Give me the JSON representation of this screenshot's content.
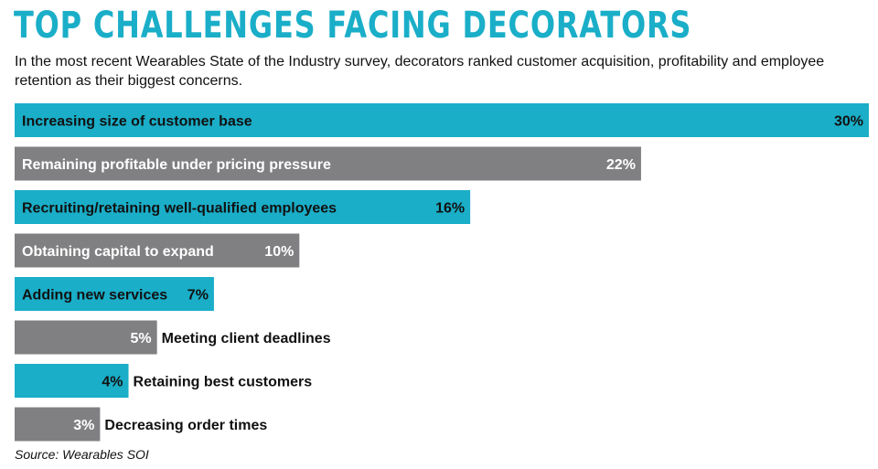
{
  "chart_data": {
    "type": "bar",
    "orientation": "horizontal",
    "title": "TOP CHALLENGES FACING DECORATORS",
    "subtitle": "In the most recent Wearables State of the Industry survey, decorators ranked customer acquisition, profitability and employee retention as their biggest concerns.",
    "source": "Source: Wearables SOI",
    "unit": "%",
    "xlim": [
      0,
      30
    ],
    "grid": false,
    "legend": "none",
    "categories": [
      "Increasing size of customer base",
      "Remaining profitable under pricing pressure",
      "Recruiting/retaining well-qualified employees",
      "Obtaining capital to expand",
      "Adding new services",
      "Meeting client deadlines",
      "Retaining best customers",
      "Decreasing order times"
    ],
    "values": [
      30,
      22,
      16,
      10,
      7,
      5,
      4,
      3
    ],
    "value_labels": [
      "30%",
      "22%",
      "16%",
      "10%",
      "7%",
      "5%",
      "4%",
      "3%"
    ],
    "bar_colors": [
      "#1aaec8",
      "#808083",
      "#1aaec8",
      "#808083",
      "#1aaec8",
      "#808083",
      "#1aaec8",
      "#808083"
    ],
    "label_inside": [
      true,
      true,
      true,
      true,
      true,
      false,
      false,
      false
    ]
  },
  "colors": {
    "accent": "#1aaec8",
    "gray": "#808083",
    "text_dark": "#111111",
    "text_light": "#ffffff"
  }
}
